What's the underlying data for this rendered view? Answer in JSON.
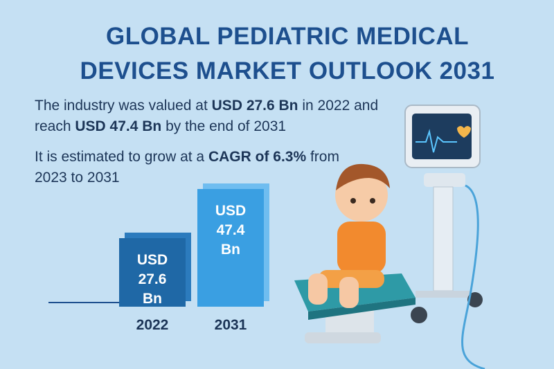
{
  "title": "GLOBAL PEDIATRIC MEDICAL DEVICES MARKET OUTLOOK 2031",
  "paragraphs": [
    [
      "The industry was valued at ",
      "USD 27.6 Bn",
      " in 2022 and reach ",
      "USD 47.4 Bn",
      " by the end of 2031"
    ],
    [
      "It is estimated to grow at a ",
      "CAGR of 6.3%",
      " from 2023 to 2031"
    ]
  ],
  "chart_data": {
    "type": "bar",
    "categories": [
      "2022",
      "2031"
    ],
    "values": [
      27.6,
      47.4
    ],
    "value_labels": [
      "USD 27.6 Bn",
      "USD 47.4 Bn"
    ],
    "colors": [
      "#1f68a6",
      "#3a9fe2"
    ]
  }
}
